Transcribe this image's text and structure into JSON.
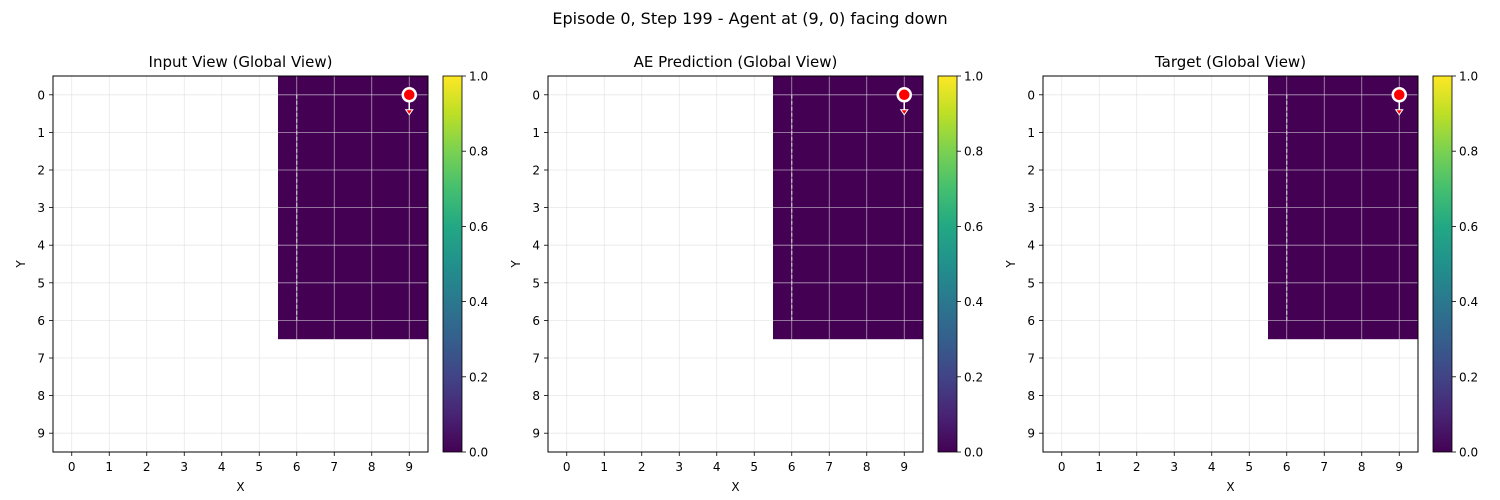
{
  "figure": {
    "suptitle": "Episode 0, Step 199 - Agent at (9, 0) facing down"
  },
  "colors": {
    "cell_zero": "#440154",
    "background": "#ffffff",
    "grid": "#dddddd",
    "agent_fill": "#ff0000",
    "agent_edge": "#ffffff",
    "path_line": "#cccccc",
    "colormap": "viridis"
  },
  "chart_data": [
    {
      "type": "heatmap",
      "title": "Input View (Global View)",
      "xlabel": "X",
      "ylabel": "Y",
      "x_ticks": [
        "0",
        "1",
        "2",
        "3",
        "4",
        "5",
        "6",
        "7",
        "8",
        "9"
      ],
      "y_ticks": [
        "0",
        "1",
        "2",
        "3",
        "4",
        "5",
        "6",
        "7",
        "8",
        "9"
      ],
      "xlim": [
        -0.5,
        9.5
      ],
      "ylim": [
        9.5,
        -0.5
      ],
      "grid": true,
      "observed_region": {
        "x": [
          6,
          9
        ],
        "y": [
          0,
          6
        ],
        "value": 0.0
      },
      "unobserved_value": null,
      "colorbar": {
        "range": [
          0,
          1
        ],
        "ticks": [
          "0.0",
          "0.2",
          "0.4",
          "0.6",
          "0.8",
          "1.0"
        ]
      },
      "agent": {
        "x": 9,
        "y": 0,
        "facing": "down"
      },
      "path": {
        "x": [
          6,
          6
        ],
        "y": [
          0,
          6
        ],
        "style": "dashed"
      }
    },
    {
      "type": "heatmap",
      "title": "AE Prediction (Global View)",
      "xlabel": "X",
      "ylabel": "Y",
      "x_ticks": [
        "0",
        "1",
        "2",
        "3",
        "4",
        "5",
        "6",
        "7",
        "8",
        "9"
      ],
      "y_ticks": [
        "0",
        "1",
        "2",
        "3",
        "4",
        "5",
        "6",
        "7",
        "8",
        "9"
      ],
      "xlim": [
        -0.5,
        9.5
      ],
      "ylim": [
        9.5,
        -0.5
      ],
      "grid": true,
      "observed_region": {
        "x": [
          6,
          9
        ],
        "y": [
          0,
          6
        ],
        "value": 0.0
      },
      "unobserved_value": null,
      "colorbar": {
        "range": [
          0,
          1
        ],
        "ticks": [
          "0.0",
          "0.2",
          "0.4",
          "0.6",
          "0.8",
          "1.0"
        ]
      },
      "agent": {
        "x": 9,
        "y": 0,
        "facing": "down"
      },
      "path": {
        "x": [
          6,
          6
        ],
        "y": [
          0,
          6
        ],
        "style": "dashed"
      }
    },
    {
      "type": "heatmap",
      "title": "Target (Global View)",
      "xlabel": "X",
      "ylabel": "Y",
      "x_ticks": [
        "0",
        "1",
        "2",
        "3",
        "4",
        "5",
        "6",
        "7",
        "8",
        "9"
      ],
      "y_ticks": [
        "0",
        "1",
        "2",
        "3",
        "4",
        "5",
        "6",
        "7",
        "8",
        "9"
      ],
      "xlim": [
        -0.5,
        9.5
      ],
      "ylim": [
        9.5,
        -0.5
      ],
      "grid": true,
      "observed_region": {
        "x": [
          6,
          9
        ],
        "y": [
          0,
          6
        ],
        "value": 0.0
      },
      "unobserved_value": null,
      "colorbar": {
        "range": [
          0,
          1
        ],
        "ticks": [
          "0.0",
          "0.2",
          "0.4",
          "0.6",
          "0.8",
          "1.0"
        ]
      },
      "agent": {
        "x": 9,
        "y": 0,
        "facing": "down"
      },
      "path": {
        "x": [
          6,
          6
        ],
        "y": [
          0,
          6
        ],
        "style": "dashed"
      }
    }
  ]
}
